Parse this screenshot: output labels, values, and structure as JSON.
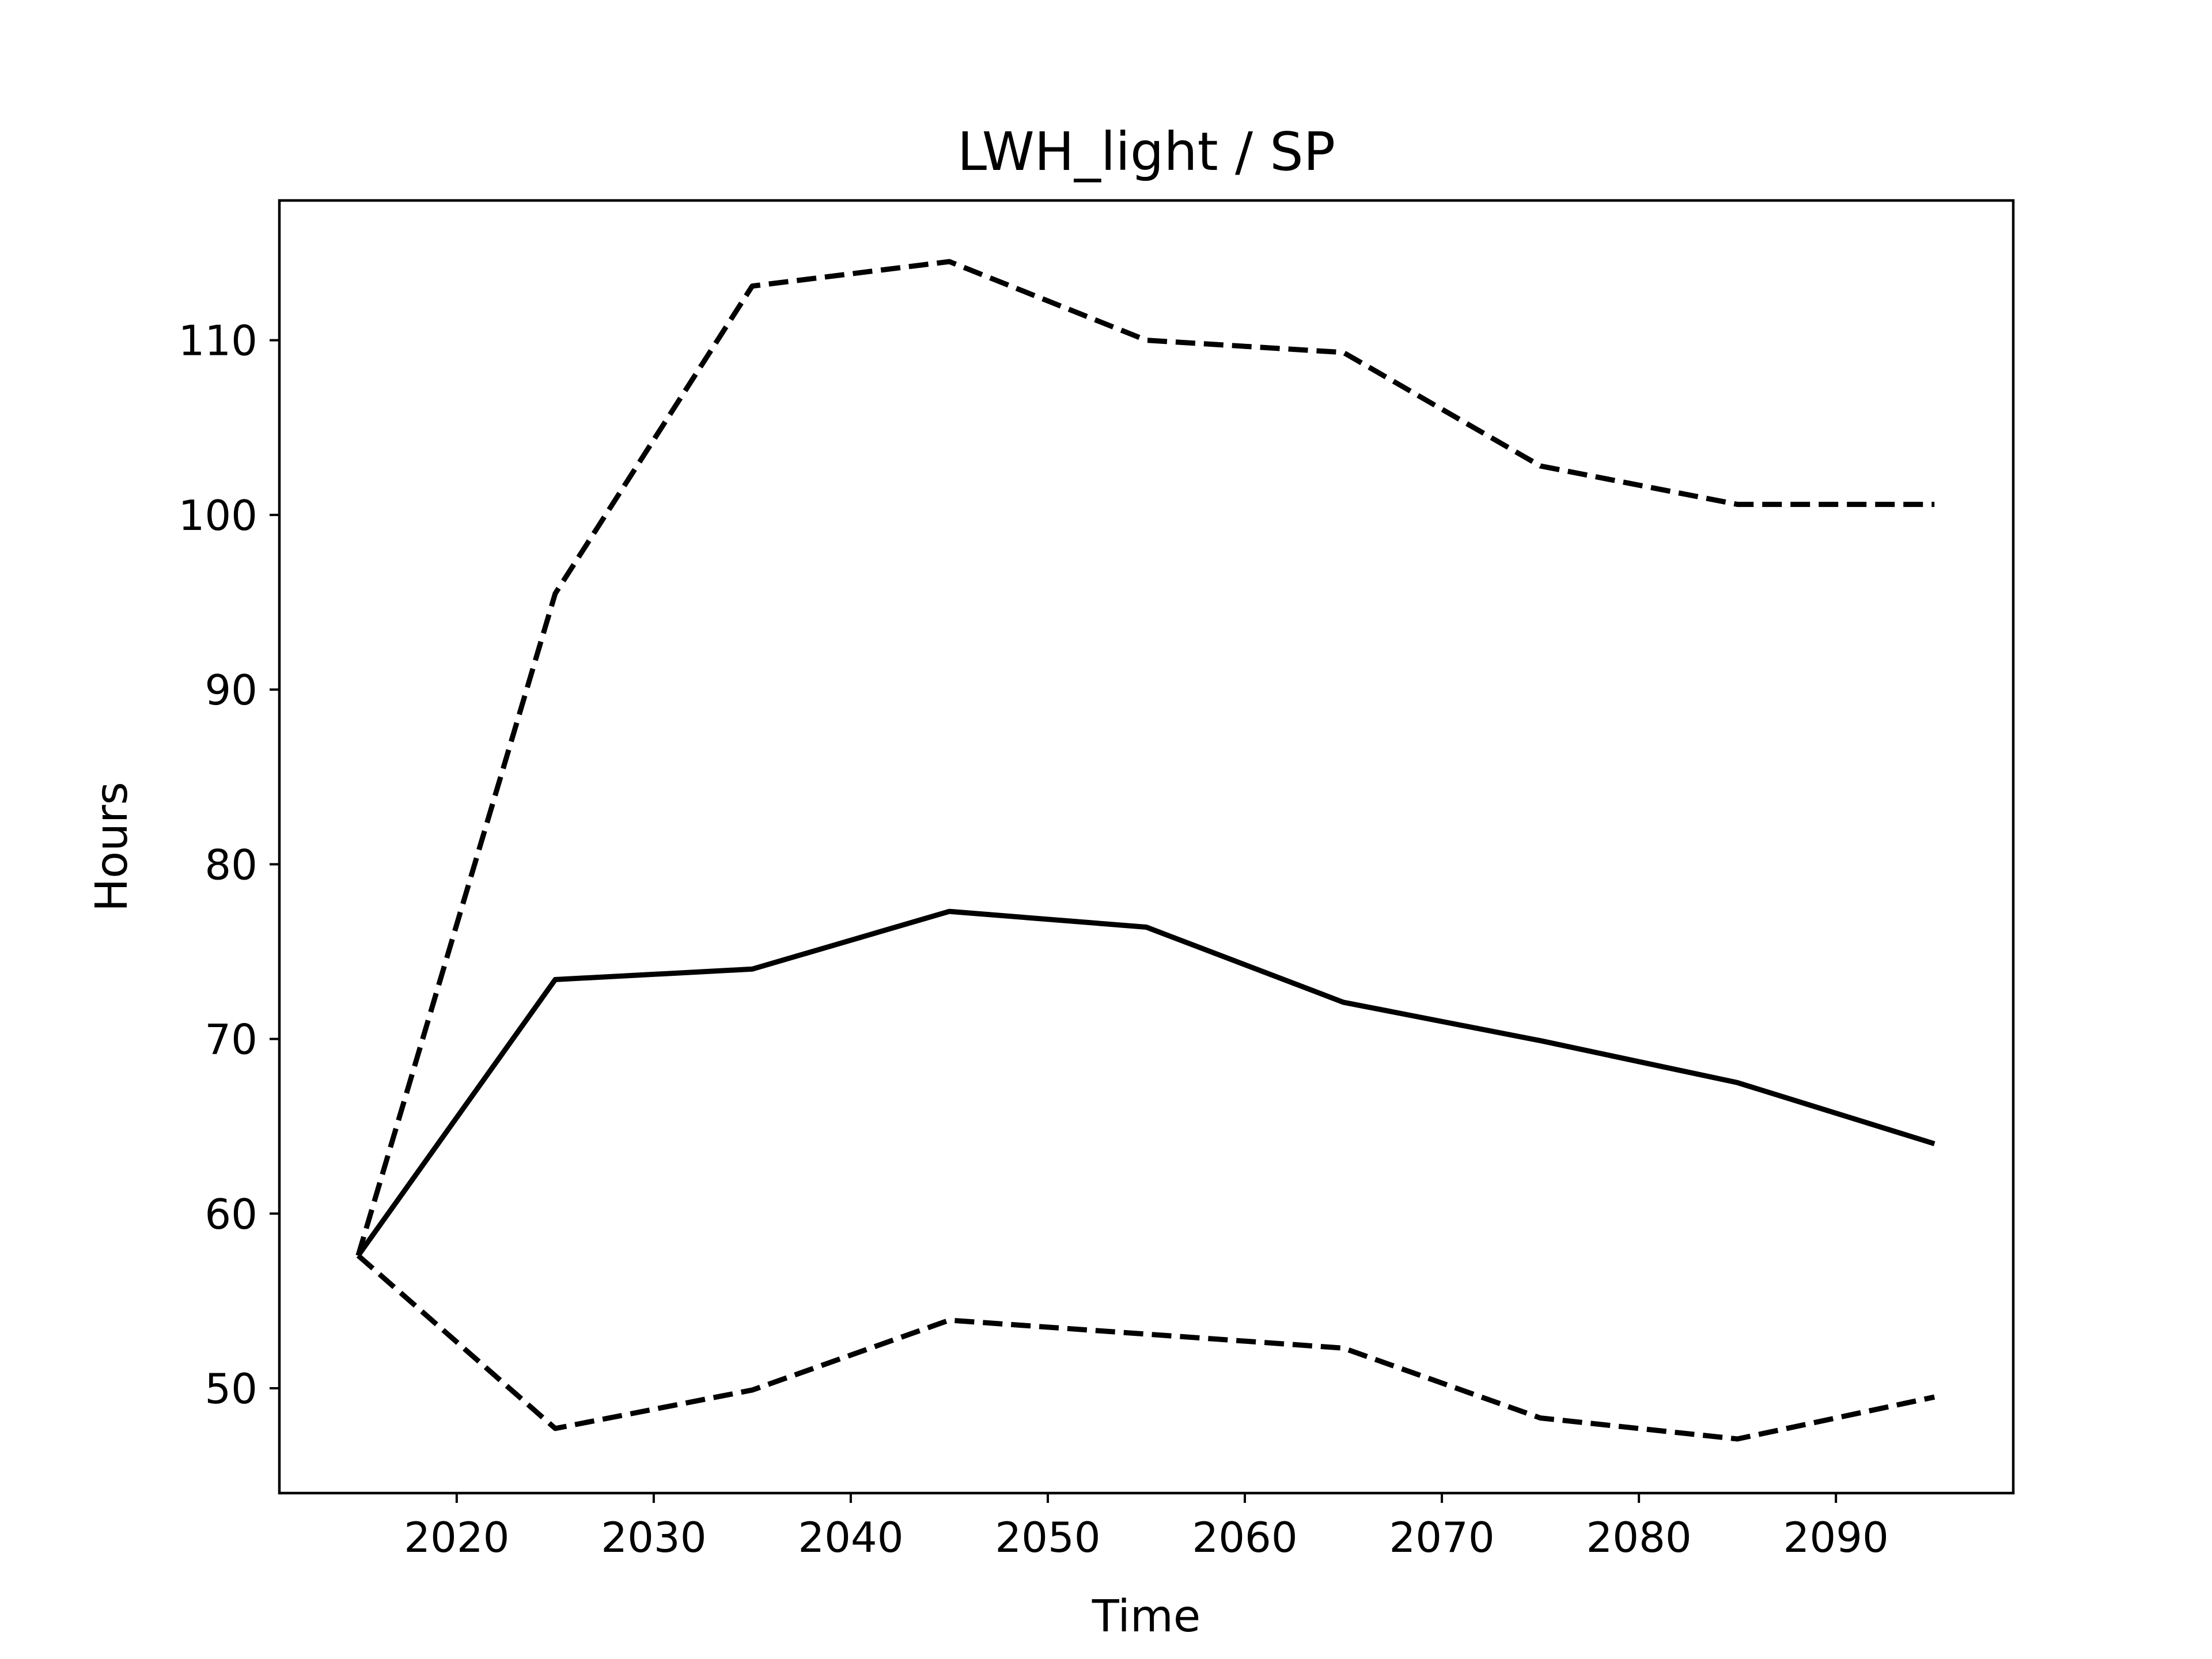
{
  "chart_data": {
    "type": "line",
    "title": "LWH_light / SP",
    "xlabel": "Time",
    "ylabel": "Hours",
    "xlim": [
      2011,
      2099
    ],
    "ylim": [
      44,
      118
    ],
    "x_ticks": [
      2020,
      2030,
      2040,
      2050,
      2060,
      2070,
      2080,
      2090
    ],
    "y_ticks": [
      50,
      60,
      70,
      80,
      90,
      100,
      110
    ],
    "grid": false,
    "legend": "none",
    "colors": {
      "line": "#000000",
      "axes": "#000000",
      "background": "#ffffff"
    },
    "x": [
      2015,
      2025,
      2035,
      2045,
      2055,
      2065,
      2075,
      2085,
      2095
    ],
    "series": [
      {
        "style": "solid",
        "values": [
          57.6,
          73.4,
          74.0,
          77.3,
          76.4,
          72.1,
          69.9,
          67.5,
          64.0
        ]
      },
      {
        "style": "dashed",
        "values": [
          57.6,
          95.5,
          113.1,
          114.5,
          110.0,
          109.3,
          102.8,
          100.6,
          100.6
        ]
      },
      {
        "style": "dashed",
        "values": [
          57.6,
          47.7,
          49.9,
          53.9,
          53.1,
          52.3,
          48.3,
          47.1,
          49.5
        ]
      }
    ]
  }
}
